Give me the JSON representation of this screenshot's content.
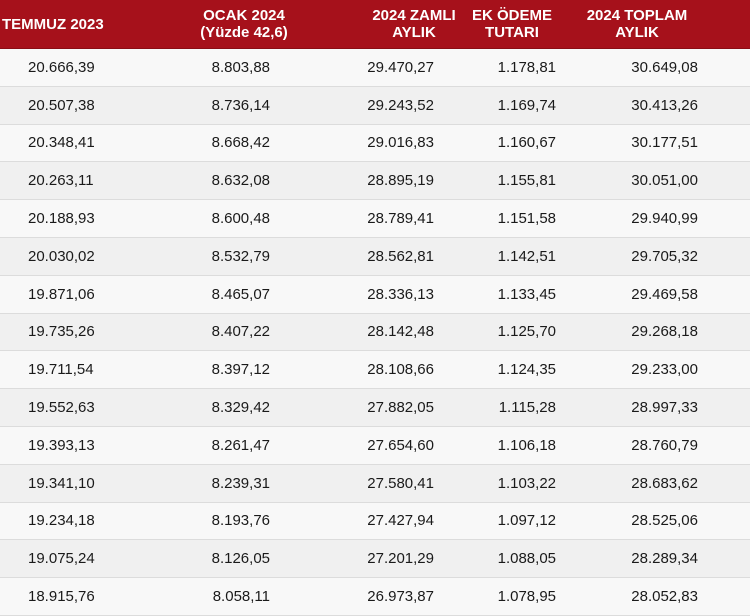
{
  "table": {
    "headers": [
      [
        "TEMMUZ 2023"
      ],
      [
        "OCAK 2024",
        "(Yüzde 42,6)"
      ],
      [
        "2024 ZAMLI",
        "AYLIK"
      ],
      [
        "EK ÖDEME",
        "TUTARI"
      ],
      [
        "2024 TOPLAM",
        "AYLIK"
      ]
    ],
    "rows": [
      [
        "20.666,39",
        "8.803,88",
        "29.470,27",
        "1.178,81",
        "30.649,08"
      ],
      [
        "20.507,38",
        "8.736,14",
        "29.243,52",
        "1.169,74",
        "30.413,26"
      ],
      [
        "20.348,41",
        "8.668,42",
        "29.016,83",
        "1.160,67",
        "30.177,51"
      ],
      [
        "20.263,11",
        "8.632,08",
        "28.895,19",
        "1.155,81",
        "30.051,00"
      ],
      [
        "20.188,93",
        "8.600,48",
        "28.789,41",
        "1.151,58",
        "29.940,99"
      ],
      [
        "20.030,02",
        "8.532,79",
        "28.562,81",
        "1.142,51",
        "29.705,32"
      ],
      [
        "19.871,06",
        "8.465,07",
        "28.336,13",
        "1.133,45",
        "29.469,58"
      ],
      [
        "19.735,26",
        "8.407,22",
        "28.142,48",
        "1.125,70",
        "29.268,18"
      ],
      [
        "19.711,54",
        "8.397,12",
        "28.108,66",
        "1.124,35",
        "29.233,00"
      ],
      [
        "19.552,63",
        "8.329,42",
        "27.882,05",
        "1.115,28",
        "28.997,33"
      ],
      [
        "19.393,13",
        "8.261,47",
        "27.654,60",
        "1.106,18",
        "28.760,79"
      ],
      [
        "19.341,10",
        "8.239,31",
        "27.580,41",
        "1.103,22",
        "28.683,62"
      ],
      [
        "19.234,18",
        "8.193,76",
        "27.427,94",
        "1.097,12",
        "28.525,06"
      ],
      [
        "19.075,24",
        "8.126,05",
        "27.201,29",
        "1.088,05",
        "28.289,34"
      ],
      [
        "18.915,76",
        "8.058,11",
        "26.973,87",
        "1.078,95",
        "28.052,83"
      ]
    ]
  },
  "colors": {
    "header_bg": "#a6111b",
    "header_text": "#ffffff",
    "row_text": "#1a1a1a"
  }
}
